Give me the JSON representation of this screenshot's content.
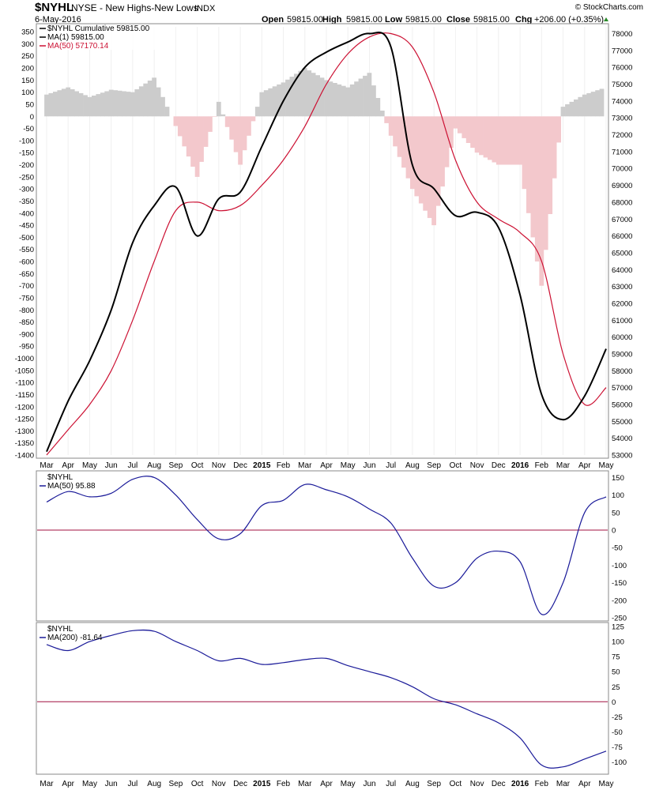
{
  "header": {
    "symbol": "$NYHL",
    "exchange": "NYSE - New Highs-New Lows",
    "index_tag": "INDX",
    "date": "6-May-2016",
    "open_label": "Open",
    "open_value": "59815.00",
    "high_label": "High",
    "high_value": "59815.00",
    "low_label": "Low",
    "low_value": "59815.00",
    "close_label": "Close",
    "close_value": "59815.00",
    "chg_label": "Chg",
    "chg_value": "+206.00 (+0.35%)",
    "watermark": "© StockCharts.com"
  },
  "colors": {
    "cumulative": "#000000",
    "ma50_main": "#cc1133",
    "histogram_pos": "#cccccc",
    "histogram_neg": "#f3c8cc",
    "panel_line": "#1a1a99",
    "zero_line": "#a01040"
  },
  "chart_data": [
    {
      "type": "line",
      "legend": [
        "$NYHL Cumulative 59815.00",
        "MA(1) 59815.00",
        "MA(50) 57170.14"
      ],
      "legend_placement": "top-left",
      "x": [
        "Mar 2014",
        "Apr 2014",
        "May 2014",
        "Jun 2014",
        "Jul 2014",
        "Aug 2014",
        "Sep 2014",
        "Oct 2014",
        "Nov 2014",
        "Dec 2014",
        "Jan 2015",
        "Feb 2015",
        "Mar 2015",
        "Apr 2015",
        "May 2015",
        "Jun 2015",
        "Jul 2015",
        "Aug 2015",
        "Sep 2015",
        "Oct 2015",
        "Nov 2015",
        "Dec 2015",
        "Jan 2016",
        "Feb 2016",
        "Mar 2016",
        "Apr 2016",
        "May 2016"
      ],
      "x_tick_labels": [
        "Mar",
        "Apr",
        "May",
        "Jun",
        "Jul",
        "Aug",
        "Sep",
        "Oct",
        "Nov",
        "Dec",
        "2015",
        "Feb",
        "Mar",
        "Apr",
        "May",
        "Jun",
        "Jul",
        "Aug",
        "Sep",
        "Oct",
        "Nov",
        "Dec",
        "2016",
        "Feb",
        "Mar",
        "Apr",
        "May"
      ],
      "series": [
        {
          "name": "MA(1)",
          "axis": "right",
          "values": [
            53200,
            56200,
            58600,
            61600,
            65600,
            67800,
            68900,
            66000,
            68200,
            68600,
            71300,
            74000,
            76000,
            76900,
            77500,
            78000,
            77200,
            70200,
            68800,
            67200,
            67400,
            66500,
            62500,
            56600,
            55100,
            56500,
            59300
          ]
        },
        {
          "name": "MA(50)",
          "axis": "right",
          "values": [
            53000,
            54500,
            56000,
            58000,
            61000,
            64500,
            67500,
            68000,
            67500,
            67800,
            69000,
            70500,
            72500,
            75000,
            76800,
            77800,
            78000,
            77200,
            74500,
            70500,
            68000,
            67000,
            66200,
            64500,
            59000,
            56000,
            57000
          ]
        },
        {
          "name": "histogram",
          "axis": "left",
          "type": "area",
          "values": [
            90,
            120,
            80,
            110,
            100,
            160,
            -40,
            -250,
            60,
            -200,
            100,
            140,
            200,
            150,
            120,
            180,
            -80,
            -300,
            -450,
            -50,
            -150,
            -200,
            -200,
            -700,
            40,
            90,
            120
          ]
        }
      ],
      "ylim_left": [
        -1400,
        370
      ],
      "yticks_left": [
        350,
        300,
        250,
        200,
        150,
        100,
        50,
        0,
        -50,
        -100,
        -150,
        -200,
        -250,
        -300,
        -350,
        -400,
        -450,
        -500,
        -550,
        -600,
        -650,
        -700,
        -750,
        -800,
        -850,
        -900,
        -950,
        -1000,
        -1050,
        -1100,
        -1150,
        -1200,
        -1250,
        -1300,
        -1350,
        -1400
      ],
      "ylim_right": [
        53000,
        78400
      ],
      "yticks_right": [
        78000,
        77000,
        76000,
        75000,
        74000,
        73000,
        72000,
        71000,
        70000,
        69000,
        68000,
        67000,
        66000,
        65000,
        64000,
        63000,
        62000,
        61000,
        60000,
        59000,
        58000,
        57000,
        56000,
        55000,
        54000,
        53000
      ]
    },
    {
      "type": "line",
      "legend": [
        "$NYHL",
        "MA(50) 95.88"
      ],
      "legend_placement": "top-left",
      "series": [
        {
          "name": "MA(50)",
          "values": [
            80,
            110,
            95,
            105,
            145,
            150,
            100,
            30,
            -25,
            -10,
            70,
            85,
            130,
            115,
            95,
            60,
            20,
            -80,
            -160,
            -150,
            -80,
            -60,
            -90,
            -240,
            -150,
            50,
            95
          ]
        }
      ],
      "ylim": [
        -250,
        160
      ],
      "yticks": [
        150,
        100,
        50,
        0,
        -50,
        -100,
        -150,
        -200,
        -250
      ],
      "zero_line": 0
    },
    {
      "type": "line",
      "legend": [
        "$NYHL",
        "MA(200) -81.64"
      ],
      "legend_placement": "top-left",
      "series": [
        {
          "name": "MA(200)",
          "values": [
            95,
            85,
            100,
            110,
            118,
            117,
            100,
            85,
            68,
            72,
            62,
            65,
            70,
            72,
            60,
            50,
            40,
            25,
            5,
            -5,
            -20,
            -35,
            -60,
            -105,
            -108,
            -95,
            -82
          ]
        }
      ],
      "ylim": [
        -115,
        125
      ],
      "yticks": [
        125,
        100,
        75,
        50,
        25,
        0,
        -25,
        -50,
        -75,
        -100
      ],
      "zero_line": 0
    }
  ]
}
